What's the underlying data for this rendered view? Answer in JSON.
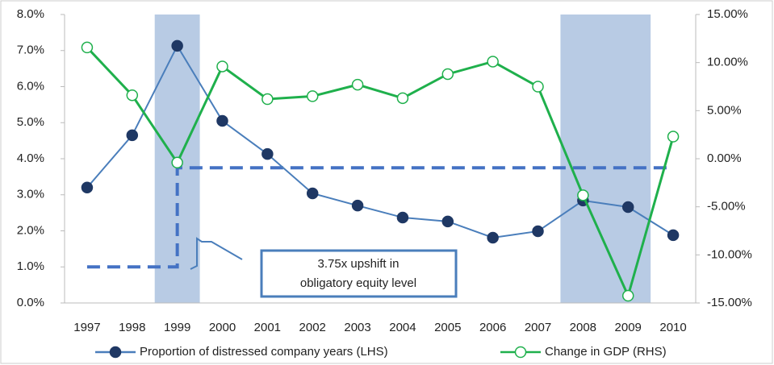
{
  "chart_data": {
    "type": "line",
    "categories": [
      "1997",
      "1998",
      "1999",
      "2000",
      "2001",
      "2002",
      "2003",
      "2004",
      "2005",
      "2006",
      "2007",
      "2008",
      "2009",
      "2010"
    ],
    "series": [
      {
        "name": "Proportion of distressed company years (LHS)",
        "color": "#4a7ebb",
        "marker_fill": "#1f3864",
        "values": [
          3.2,
          4.65,
          7.13,
          5.05,
          4.13,
          3.04,
          2.7,
          2.37,
          2.26,
          1.81,
          1.99,
          2.84,
          2.66,
          1.88
        ]
      },
      {
        "name": "Change in GDP (RHS)",
        "color": "#1fb04c",
        "marker_fill": "#ffffff",
        "axis": "y2",
        "values": [
          11.57,
          6.6,
          -0.4,
          9.6,
          6.2,
          6.5,
          7.7,
          6.3,
          8.8,
          10.1,
          7.5,
          -3.8,
          -14.25,
          2.3
        ]
      }
    ],
    "ylim": [
      0,
      8
    ],
    "yticks": [
      {
        "value": 0,
        "label": "0.0%"
      },
      {
        "value": 1,
        "label": "1.0%"
      },
      {
        "value": 2,
        "label": "2.0%"
      },
      {
        "value": 3,
        "label": "3.0%"
      },
      {
        "value": 4,
        "label": "4.0%"
      },
      {
        "value": 5,
        "label": "5.0%"
      },
      {
        "value": 6,
        "label": "6.0%"
      },
      {
        "value": 7,
        "label": "7.0%"
      },
      {
        "value": 8,
        "label": "8.0%"
      }
    ],
    "y2lim": [
      -15,
      15
    ],
    "y2ticks": [
      {
        "value": -15,
        "label": "-15.00%"
      },
      {
        "value": -10,
        "label": "-10.00%"
      },
      {
        "value": -5,
        "label": "-5.00%"
      },
      {
        "value": 0,
        "label": "0.00%"
      },
      {
        "value": 5,
        "label": "5.00%"
      },
      {
        "value": 10,
        "label": "10.00%"
      },
      {
        "value": 15,
        "label": "15.00%"
      }
    ],
    "shaded": [
      {
        "from": "1999",
        "to": "1999",
        "color": "#b8cbe4"
      },
      {
        "from": "2008",
        "to": "2009",
        "color": "#b8cbe4"
      }
    ],
    "step_line": {
      "from": "1997",
      "step_at": "1999",
      "to": "2010",
      "before": 1.0,
      "after": 3.75,
      "color": "#4472c4"
    },
    "annotation": [
      "3.75x upshift in",
      "obligatory equity level"
    ],
    "legend": "bottom"
  }
}
